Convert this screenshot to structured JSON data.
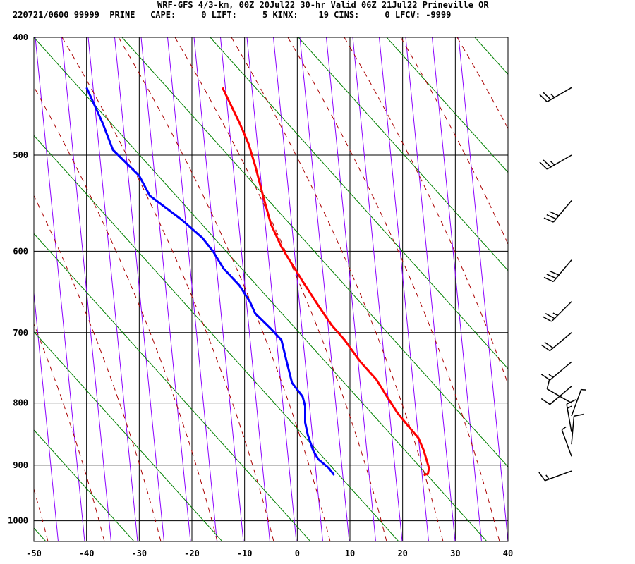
{
  "header": {
    "title": "WRF-GFS 4/3-km, 00Z 20Jul22 30-hr Valid 06Z 21Jul22 Prineville OR",
    "info_line": "220721/0600 99999  PRINE   CAPE:     0 LIFT:     5 KINX:    19 CINS:     0 LFCV: -9999"
  },
  "colors": {
    "temperature": "#ff0000",
    "dewpoint": "#0000ff",
    "isotherm_skew": "#8b00ff",
    "dry_adiabat": "#008000",
    "moist_adiabat": "#aa0000",
    "wind_barb": "#000000"
  },
  "chart_data": {
    "type": "line",
    "chart_kind": "skew-T log-P sounding",
    "x_ticks": [
      -50,
      -40,
      -30,
      -20,
      -10,
      0,
      10,
      20,
      30,
      40
    ],
    "y_ticks": [
      400,
      500,
      600,
      700,
      800,
      900,
      1000
    ],
    "xlim": [
      -50,
      40
    ],
    "ylim": [
      1040,
      400
    ],
    "y_scale": "log",
    "grid": true,
    "series": [
      {
        "key": "temperature",
        "points": [
          [
            -14.2,
            440
          ],
          [
            -11,
            470
          ],
          [
            -9.2,
            490
          ],
          [
            -8,
            510
          ],
          [
            -6.5,
            540
          ],
          [
            -5,
            570
          ],
          [
            -3,
            595
          ],
          [
            -2,
            605
          ],
          [
            1,
            635
          ],
          [
            4,
            665
          ],
          [
            6.5,
            690
          ],
          [
            9,
            710
          ],
          [
            12,
            740
          ],
          [
            15,
            765
          ],
          [
            17,
            790
          ],
          [
            19,
            815
          ],
          [
            21,
            835
          ],
          [
            23,
            855
          ],
          [
            24,
            875
          ],
          [
            24.5,
            890
          ],
          [
            25,
            905
          ],
          [
            24.8,
            915
          ],
          [
            24,
            917
          ]
        ]
      },
      {
        "key": "dewpoint",
        "points": [
          [
            -40,
            440
          ],
          [
            -37,
            470
          ],
          [
            -35,
            495
          ],
          [
            -30,
            520
          ],
          [
            -28,
            540
          ],
          [
            -22,
            565
          ],
          [
            -18,
            585
          ],
          [
            -16,
            600
          ],
          [
            -14,
            620
          ],
          [
            -11,
            640
          ],
          [
            -9,
            660
          ],
          [
            -8,
            675
          ],
          [
            -5,
            695
          ],
          [
            -3,
            710
          ],
          [
            -2,
            740
          ],
          [
            -1,
            770
          ],
          [
            1,
            790
          ],
          [
            1.5,
            805
          ],
          [
            1.5,
            830
          ],
          [
            2,
            850
          ],
          [
            3,
            875
          ],
          [
            4,
            890
          ],
          [
            6,
            905
          ],
          [
            7,
            917
          ]
        ]
      }
    ],
    "wind_barbs": [
      {
        "p": 440,
        "dir": 240,
        "spd": 25
      },
      {
        "p": 500,
        "dir": 240,
        "spd": 25
      },
      {
        "p": 545,
        "dir": 220,
        "spd": 30
      },
      {
        "p": 610,
        "dir": 220,
        "spd": 30
      },
      {
        "p": 660,
        "dir": 225,
        "spd": 25
      },
      {
        "p": 700,
        "dir": 230,
        "spd": 20
      },
      {
        "p": 740,
        "dir": 230,
        "spd": 15
      },
      {
        "p": 775,
        "dir": 230,
        "spd": 10
      },
      {
        "p": 800,
        "dir": 300,
        "spd": 10
      },
      {
        "p": 820,
        "dir": 20,
        "spd": 5
      },
      {
        "p": 845,
        "dir": 350,
        "spd": 15
      },
      {
        "p": 865,
        "dir": 5,
        "spd": 10
      },
      {
        "p": 885,
        "dir": 340,
        "spd": 5
      },
      {
        "p": 910,
        "dir": 250,
        "spd": 15
      }
    ]
  }
}
